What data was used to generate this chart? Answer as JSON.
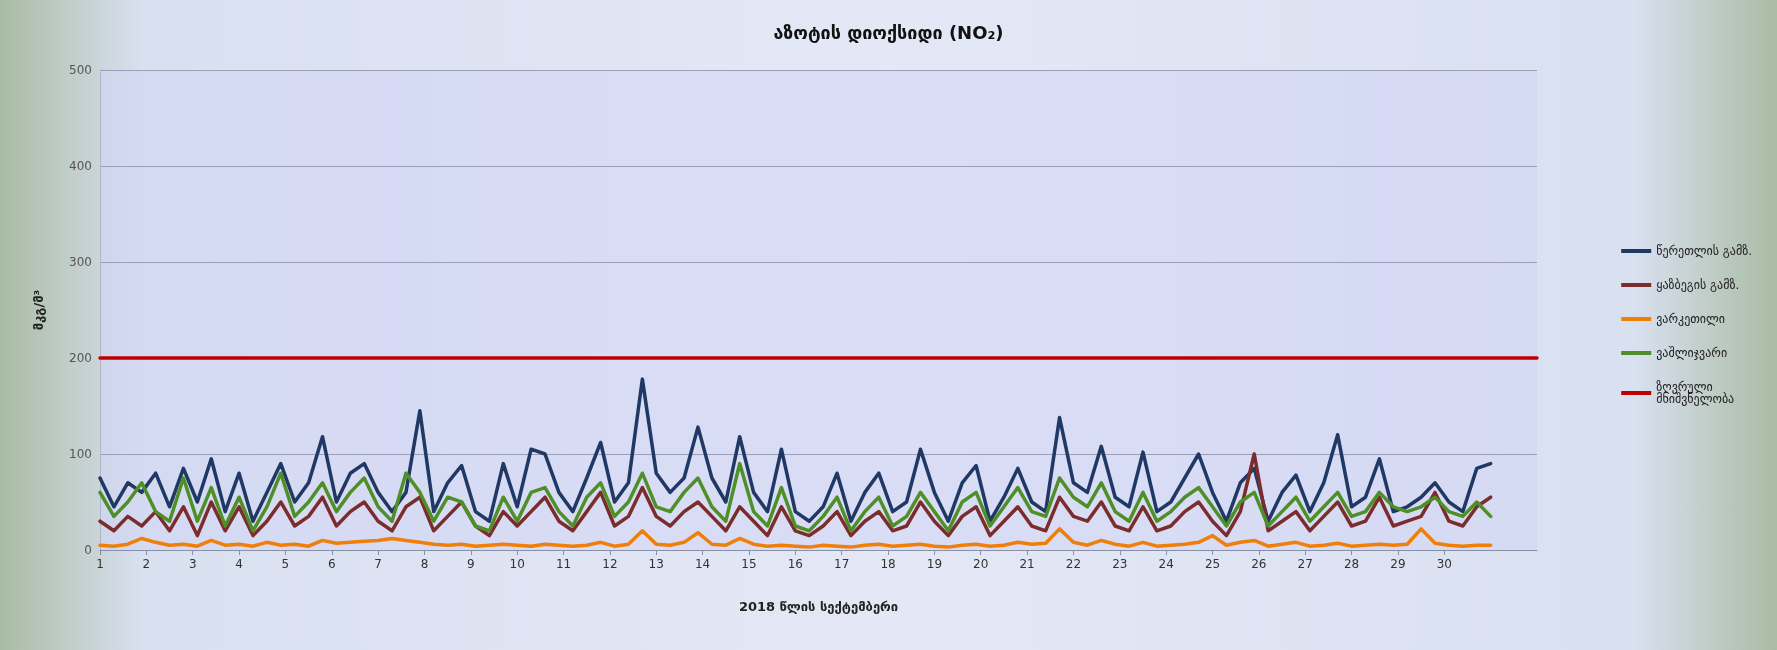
{
  "chart_data": {
    "type": "line",
    "title": "აზოტის დიოქსიდი (NO₂)",
    "xlabel": "2018 წლის სექტემბერი",
    "ylabel": "მკგ/მ³",
    "x": [
      1,
      1.3,
      1.6,
      1.9,
      2.2,
      2.5,
      2.8,
      3.1,
      3.4,
      3.7,
      4,
      4.3,
      4.6,
      4.9,
      5.2,
      5.5,
      5.8,
      6.1,
      6.4,
      6.7,
      7,
      7.3,
      7.6,
      7.9,
      8.2,
      8.5,
      8.8,
      9.1,
      9.4,
      9.7,
      10,
      10.3,
      10.6,
      10.9,
      11.2,
      11.5,
      11.8,
      12.1,
      12.4,
      12.7,
      13,
      13.3,
      13.6,
      13.9,
      14.2,
      14.5,
      14.8,
      15.1,
      15.4,
      15.7,
      16,
      16.3,
      16.6,
      16.9,
      17.2,
      17.5,
      17.8,
      18.1,
      18.4,
      18.7,
      19,
      19.3,
      19.6,
      19.9,
      20.2,
      20.5,
      20.8,
      21.1,
      21.4,
      21.7,
      22,
      22.3,
      22.6,
      22.9,
      23.2,
      23.5,
      23.8,
      24.1,
      24.4,
      24.7,
      25,
      25.3,
      25.6,
      25.9,
      26.2,
      26.5,
      26.8,
      27.1,
      27.4,
      27.7,
      28,
      28.3,
      28.6,
      28.9,
      29.2,
      29.5,
      29.8,
      30.1,
      30.4,
      30.7,
      31
    ],
    "series": [
      {
        "name": "წერეთლის გამზ.",
        "color": "#1f3864",
        "values": [
          75,
          45,
          70,
          60,
          80,
          45,
          85,
          50,
          95,
          40,
          80,
          30,
          60,
          90,
          50,
          70,
          118,
          50,
          80,
          90,
          60,
          40,
          60,
          145,
          40,
          70,
          88,
          40,
          30,
          90,
          45,
          105,
          100,
          60,
          40,
          75,
          112,
          50,
          70,
          178,
          80,
          60,
          75,
          128,
          75,
          50,
          118,
          60,
          40,
          105,
          40,
          30,
          45,
          80,
          30,
          60,
          80,
          40,
          50,
          105,
          60,
          30,
          70,
          88,
          30,
          55,
          85,
          50,
          40,
          138,
          70,
          60,
          108,
          55,
          45,
          102,
          40,
          50,
          75,
          100,
          60,
          30,
          70,
          85,
          30,
          60,
          78,
          40,
          70,
          120,
          45,
          55,
          95,
          40,
          45,
          55,
          70,
          50,
          40,
          85,
          90
        ]
      },
      {
        "name": "ყაზბეგის გამზ.",
        "color": "#7b2c2c",
        "values": [
          30,
          20,
          35,
          25,
          40,
          20,
          45,
          15,
          50,
          20,
          45,
          15,
          30,
          50,
          25,
          35,
          55,
          25,
          40,
          50,
          30,
          20,
          45,
          55,
          20,
          35,
          50,
          25,
          15,
          40,
          25,
          40,
          55,
          30,
          20,
          40,
          60,
          25,
          35,
          65,
          35,
          25,
          40,
          50,
          35,
          20,
          45,
          30,
          15,
          45,
          20,
          15,
          25,
          40,
          15,
          30,
          40,
          20,
          25,
          50,
          30,
          15,
          35,
          45,
          15,
          30,
          45,
          25,
          20,
          55,
          35,
          30,
          50,
          25,
          20,
          45,
          20,
          25,
          40,
          50,
          30,
          15,
          40,
          100,
          20,
          30,
          40,
          20,
          35,
          50,
          25,
          30,
          55,
          25,
          30,
          35,
          60,
          30,
          25,
          45,
          55
        ]
      },
      {
        "name": "ვარკეთილი",
        "color": "#f07f09",
        "values": [
          5,
          4,
          6,
          12,
          8,
          5,
          6,
          4,
          10,
          5,
          6,
          4,
          8,
          5,
          6,
          4,
          10,
          7,
          8,
          9,
          10,
          12,
          10,
          8,
          6,
          5,
          6,
          4,
          5,
          6,
          5,
          4,
          6,
          5,
          4,
          5,
          8,
          4,
          6,
          20,
          6,
          5,
          8,
          18,
          6,
          5,
          12,
          6,
          4,
          5,
          4,
          3,
          5,
          4,
          3,
          5,
          6,
          4,
          5,
          6,
          4,
          3,
          5,
          6,
          4,
          5,
          8,
          6,
          7,
          22,
          8,
          5,
          10,
          6,
          4,
          8,
          4,
          5,
          6,
          8,
          15,
          5,
          8,
          10,
          4,
          6,
          8,
          4,
          5,
          7,
          4,
          5,
          6,
          5,
          6,
          22,
          7,
          5,
          4,
          5,
          5
        ]
      },
      {
        "name": "ვაშლიჯვარი",
        "color": "#4e8f27",
        "values": [
          60,
          35,
          50,
          70,
          40,
          30,
          75,
          30,
          65,
          25,
          55,
          20,
          45,
          80,
          35,
          50,
          70,
          40,
          60,
          75,
          45,
          30,
          80,
          60,
          30,
          55,
          50,
          25,
          20,
          55,
          30,
          60,
          65,
          40,
          25,
          55,
          70,
          35,
          50,
          80,
          45,
          40,
          60,
          75,
          45,
          30,
          90,
          40,
          25,
          65,
          25,
          20,
          35,
          55,
          20,
          40,
          55,
          25,
          35,
          60,
          40,
          20,
          50,
          60,
          25,
          45,
          65,
          40,
          35,
          75,
          55,
          45,
          70,
          40,
          30,
          60,
          30,
          40,
          55,
          65,
          45,
          25,
          50,
          60,
          25,
          40,
          55,
          30,
          45,
          60,
          35,
          40,
          60,
          45,
          40,
          45,
          55,
          40,
          35,
          50,
          35
        ]
      },
      {
        "name": "ზღვრული მნიშვნელობა",
        "color": "#c00000",
        "x": [
          1,
          32
        ],
        "values": [
          200,
          200
        ]
      }
    ],
    "xlim": [
      1,
      32
    ],
    "xticks": [
      1,
      2,
      3,
      4,
      5,
      6,
      7,
      8,
      9,
      10,
      11,
      12,
      13,
      14,
      15,
      16,
      17,
      18,
      19,
      20,
      21,
      22,
      23,
      24,
      25,
      26,
      27,
      28,
      29,
      30
    ],
    "ylim": [
      0,
      500
    ],
    "yticks": [
      0,
      100,
      200,
      300,
      400,
      500
    ],
    "grid": "y",
    "legend": "right",
    "marker": "none",
    "line_style": "solid"
  }
}
